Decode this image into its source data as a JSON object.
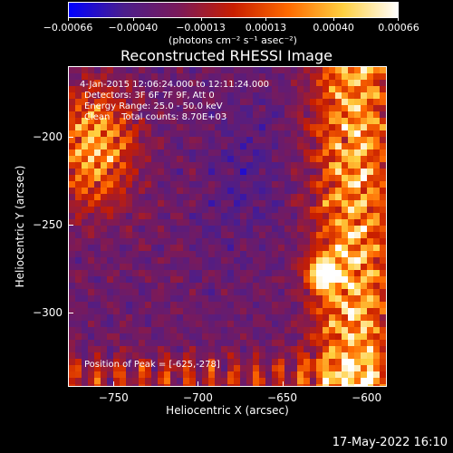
{
  "chart_data": {
    "type": "heatmap",
    "title": "Reconstructed RHESSI Image",
    "xlabel": "Heliocentric X (arcsec)",
    "ylabel": "Heliocentric Y (arcsec)",
    "xlim": [
      -777,
      -588
    ],
    "ylim": [
      -342,
      -160
    ],
    "xticks": [
      "-750",
      "-700",
      "-650",
      "-600"
    ],
    "xtick_values": [
      -750,
      -700,
      -650,
      -600
    ],
    "yticks": [
      "-200",
      "-250",
      "-300"
    ],
    "ytick_values": [
      -200,
      -250,
      -300
    ],
    "colorbar": {
      "min": -0.00066,
      "max": 0.00066,
      "ticks": [
        "-0.00066",
        "-0.00040",
        "-0.00013",
        "0.00013",
        "0.00040",
        "0.00066"
      ],
      "tick_values": [
        -0.00066,
        -0.0004,
        -0.00013,
        0.00013,
        0.0004,
        0.00066
      ],
      "units": "(photons cm⁻² s⁻¹ asec⁻²)",
      "colors": [
        "#0000ff",
        "#4b1e8c",
        "#7a1a5a",
        "#c81e00",
        "#ff6a00",
        "#ffd040",
        "#ffffff"
      ]
    },
    "annotations": {
      "time": "4-Jan-2015 12:06:24.000 to 12:11:24.000",
      "detectors": "Detectors: 3F 6F 7F 9F, Att 0",
      "energy": "Energy Range: 25.0 - 50.0 keV",
      "clean": "Clean    Total counts: 8.70E+03",
      "peak": "Position of Peak = [-625,-278]"
    },
    "peak": [
      -625,
      -278
    ]
  },
  "footer": {
    "date": "17-May-2022 16:10"
  }
}
